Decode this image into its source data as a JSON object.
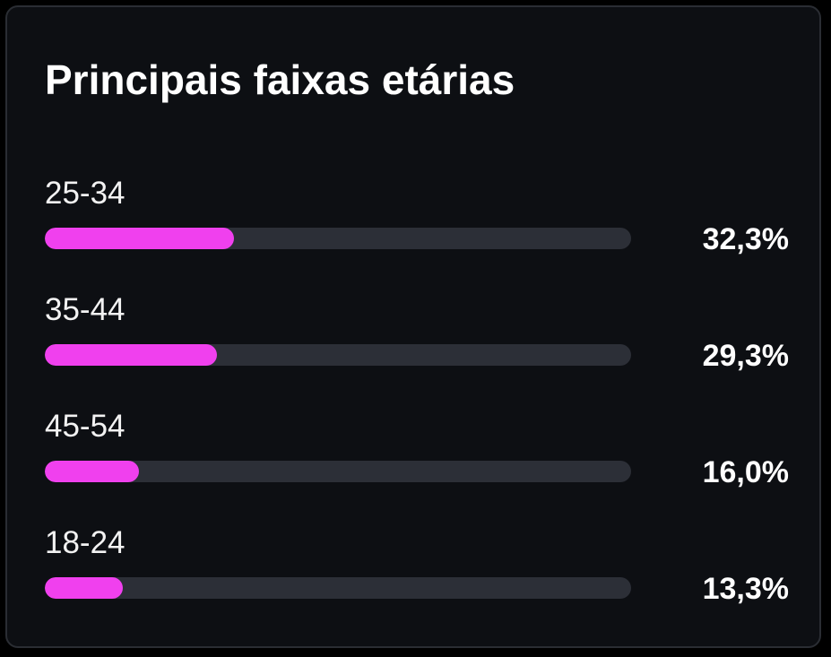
{
  "card": {
    "title": "Principais faixas etárias"
  },
  "colors": {
    "bar_fill": "#f040ee",
    "bar_track": "#2c2f37",
    "card_background": "#0d0f13"
  },
  "age_groups": [
    {
      "label": "25-34",
      "percent_text": "32,3%",
      "value": 32.3
    },
    {
      "label": "35-44",
      "percent_text": "29,3%",
      "value": 29.3
    },
    {
      "label": "45-54",
      "percent_text": "16,0%",
      "value": 16.0
    },
    {
      "label": "18-24",
      "percent_text": "13,3%",
      "value": 13.3
    }
  ]
}
